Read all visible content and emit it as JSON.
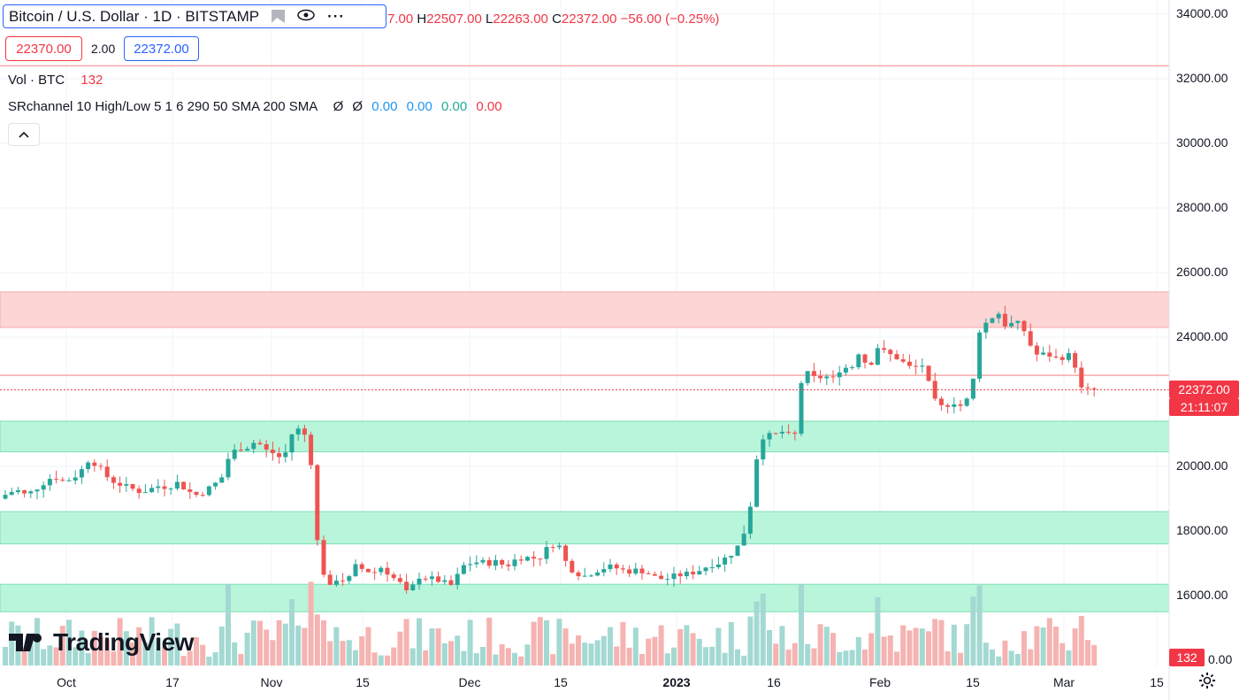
{
  "legend": {
    "symbol": "Bitcoin / U.S. Dollar · 1D · BITSTAMP",
    "ohlc": {
      "o_label": "",
      "o": "7.00",
      "h_label": "H",
      "h": "22507.00",
      "l_label": "L",
      "l": "22263.00",
      "c_label": "C",
      "c": "22372.00",
      "change": "−56.00 (−0.25%)"
    },
    "bid": "22370.00",
    "spread": "2.00",
    "ask": "22372.00",
    "volume": {
      "label": "Vol · BTC",
      "value": "132"
    },
    "indicator": {
      "label": "SRchannel 10 High/Low 5 1 6 290 50 SMA 200 SMA",
      "v0": "Ø",
      "v1": "Ø",
      "v2": "0.00",
      "v3": "0.00",
      "v4": "0.00",
      "v5": "0.00"
    },
    "collapse_icon": "chevron-up-icon"
  },
  "price_axis": [
    "34000.00",
    "32000.00",
    "30000.00",
    "28000.00",
    "26000.00",
    "24000.00",
    "20000.00",
    "18000.00",
    "16000.00"
  ],
  "current_price": "22372.00",
  "countdown": "21:11:07",
  "volume_axis_label": "0.00",
  "volume_tag": "132",
  "time_axis": [
    "Oct",
    "17",
    "Nov",
    "15",
    "Dec",
    "15",
    "2023",
    "16",
    "Feb",
    "15",
    "Mar",
    "15"
  ],
  "logo": "TradingView",
  "colors": {
    "up": "#26a69a",
    "down": "#ef5350",
    "resistance": "#fcd5d5",
    "support": "#b9f5da",
    "accent": "#2962ff"
  },
  "chart_data": {
    "type": "candlestick",
    "price_range": [
      15000,
      34500
    ],
    "zones": [
      {
        "kind": "resistance",
        "from": 24300,
        "to": 25400
      },
      {
        "kind": "support",
        "from": 20450,
        "to": 21400
      },
      {
        "kind": "support",
        "from": 17600,
        "to": 18600
      },
      {
        "kind": "support",
        "from": 15500,
        "to": 16350
      }
    ],
    "lines": [
      32400,
      22820
    ],
    "close_path": [
      [
        0,
        19000
      ],
      [
        10,
        19200
      ],
      [
        20,
        19250
      ],
      [
        30,
        19100
      ],
      [
        40,
        19300
      ],
      [
        50,
        19500
      ],
      [
        60,
        19700
      ],
      [
        70,
        19550
      ],
      [
        80,
        19600
      ],
      [
        90,
        19800
      ],
      [
        100,
        20200
      ],
      [
        110,
        20050
      ],
      [
        120,
        19700
      ],
      [
        130,
        19500
      ],
      [
        140,
        19400
      ],
      [
        150,
        19300
      ],
      [
        160,
        19200
      ],
      [
        170,
        19300
      ],
      [
        180,
        19400
      ],
      [
        190,
        19350
      ],
      [
        200,
        19500
      ],
      [
        210,
        19300
      ],
      [
        220,
        19100
      ],
      [
        230,
        19200
      ],
      [
        240,
        19400
      ],
      [
        250,
        19600
      ],
      [
        260,
        20400
      ],
      [
        270,
        20550
      ],
      [
        280,
        20600
      ],
      [
        290,
        20800
      ],
      [
        300,
        20500
      ],
      [
        310,
        20400
      ],
      [
        320,
        20200
      ],
      [
        330,
        21000
      ],
      [
        340,
        21200
      ],
      [
        350,
        20700
      ],
      [
        358,
        17800
      ],
      [
        366,
        16700
      ],
      [
        374,
        16200
      ],
      [
        382,
        16600
      ],
      [
        392,
        16400
      ],
      [
        402,
        16900
      ],
      [
        412,
        16800
      ],
      [
        422,
        16700
      ],
      [
        432,
        16900
      ],
      [
        442,
        16600
      ],
      [
        452,
        16400
      ],
      [
        462,
        16000
      ],
      [
        472,
        16600
      ],
      [
        482,
        16550
      ],
      [
        492,
        16500
      ],
      [
        502,
        16400
      ],
      [
        512,
        16300
      ],
      [
        522,
        16900
      ],
      [
        532,
        17000
      ],
      [
        542,
        17050
      ],
      [
        552,
        17000
      ],
      [
        562,
        17050
      ],
      [
        572,
        16900
      ],
      [
        582,
        17100
      ],
      [
        592,
        17200
      ],
      [
        602,
        17150
      ],
      [
        612,
        17200
      ],
      [
        622,
        17600
      ],
      [
        632,
        17550
      ],
      [
        642,
        16900
      ],
      [
        652,
        16700
      ],
      [
        662,
        16600
      ],
      [
        672,
        16750
      ],
      [
        682,
        16850
      ],
      [
        692,
        16900
      ],
      [
        702,
        16800
      ],
      [
        712,
        16750
      ],
      [
        722,
        16800
      ],
      [
        732,
        16700
      ],
      [
        742,
        16550
      ],
      [
        752,
        16500
      ],
      [
        762,
        16600
      ],
      [
        772,
        16650
      ],
      [
        782,
        16700
      ],
      [
        792,
        16800
      ],
      [
        802,
        16950
      ],
      [
        812,
        17000
      ],
      [
        822,
        17200
      ],
      [
        832,
        17400
      ],
      [
        842,
        18000
      ],
      [
        850,
        19000
      ],
      [
        858,
        20800
      ],
      [
        866,
        21000
      ],
      [
        874,
        20900
      ],
      [
        882,
        21100
      ],
      [
        890,
        21000
      ],
      [
        898,
        20800
      ],
      [
        906,
        22600
      ],
      [
        914,
        22900
      ],
      [
        922,
        22700
      ],
      [
        932,
        22800
      ],
      [
        942,
        22700
      ],
      [
        952,
        23100
      ],
      [
        962,
        23000
      ],
      [
        972,
        23600
      ],
      [
        982,
        23000
      ],
      [
        992,
        23700
      ],
      [
        1002,
        23500
      ],
      [
        1012,
        23400
      ],
      [
        1022,
        23200
      ],
      [
        1032,
        23000
      ],
      [
        1042,
        23200
      ],
      [
        1052,
        22400
      ],
      [
        1060,
        21800
      ],
      [
        1070,
        21900
      ],
      [
        1080,
        22000
      ],
      [
        1090,
        21800
      ],
      [
        1100,
        22600
      ],
      [
        1108,
        24300
      ],
      [
        1118,
        24500
      ],
      [
        1128,
        24800
      ],
      [
        1138,
        24300
      ],
      [
        1148,
        24500
      ],
      [
        1158,
        24200
      ],
      [
        1166,
        23700
      ],
      [
        1174,
        23400
      ],
      [
        1182,
        23500
      ],
      [
        1190,
        23400
      ],
      [
        1198,
        23300
      ],
      [
        1206,
        23500
      ],
      [
        1214,
        23300
      ],
      [
        1222,
        22400
      ],
      [
        1230,
        22350
      ],
      [
        1238,
        22372
      ]
    ]
  }
}
